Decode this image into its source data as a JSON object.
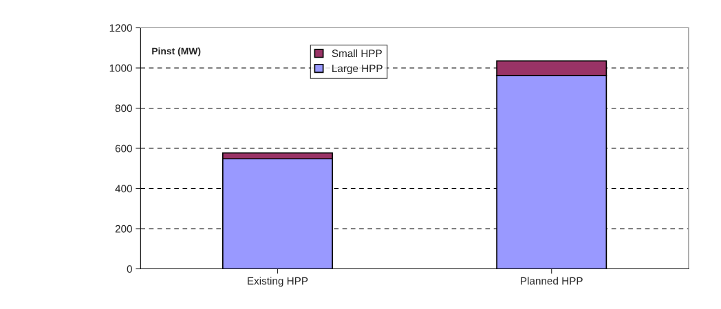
{
  "chart_data": {
    "type": "bar",
    "stacked": true,
    "ylabel": "Pinst (MW)",
    "categories": [
      "Existing HPP",
      "Planned HPP"
    ],
    "series": [
      {
        "name": "Large HPP",
        "color": "#9999ff",
        "values": [
          548,
          962
        ]
      },
      {
        "name": "Small HPP",
        "color": "#993366",
        "values": [
          29,
          73
        ]
      }
    ],
    "ylim": [
      0,
      1200
    ],
    "yticks": [
      0,
      200,
      400,
      600,
      800,
      1000,
      1200
    ],
    "grid": "y",
    "legend": "top"
  }
}
